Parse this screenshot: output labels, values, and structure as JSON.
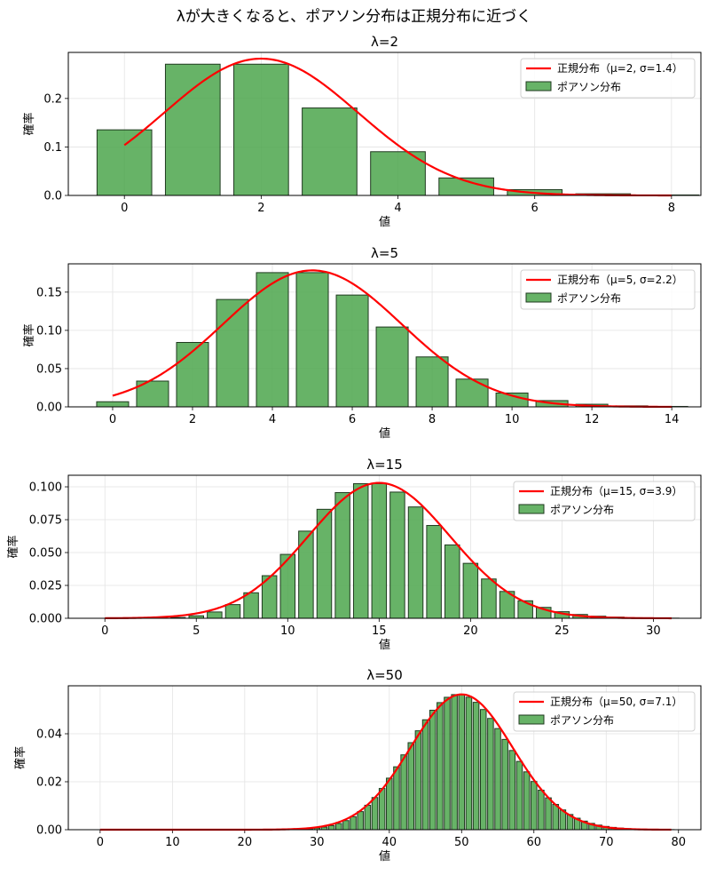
{
  "suptitle": "λが大きくなると、ポアソン分布は正規分布に近づく",
  "colors": {
    "bar": "#4CA64C",
    "bar_edge": "#1f3a1f",
    "line": "#ff0000",
    "grid": "#e3e3e3"
  },
  "chart_data": [
    {
      "type": "bar+line",
      "title": "λ=2",
      "xlabel": "値",
      "ylabel": "確率",
      "lambda": 2,
      "mu": 2,
      "sigma": 1.414,
      "legend": [
        "正規分布（μ=2, σ=1.4）",
        "ポアソン分布"
      ],
      "legend_placement": "top-right",
      "xlim": [
        -0.82,
        8.43
      ],
      "ylim": [
        0,
        0.295
      ],
      "xticks": [
        0,
        2,
        4,
        6,
        8
      ],
      "yticks": [
        0,
        0.1,
        0.2
      ],
      "ytick_labels": [
        "0.0",
        "0.1",
        "0.2"
      ],
      "x": [
        0,
        1,
        2,
        3,
        4,
        5,
        6,
        7,
        8
      ],
      "values": [
        0.1353,
        0.2707,
        0.2707,
        0.1804,
        0.0902,
        0.0361,
        0.012,
        0.0034,
        0.0009
      ],
      "line_x_range": [
        0,
        8
      ]
    },
    {
      "type": "bar+line",
      "title": "λ=5",
      "xlabel": "値",
      "ylabel": "確率",
      "lambda": 5,
      "mu": 5,
      "sigma": 2.236,
      "legend": [
        "正規分布（μ=5, σ=2.2）",
        "ポアソン分布"
      ],
      "legend_placement": "top-right",
      "xlim": [
        -1.11,
        14.73
      ],
      "ylim": [
        0,
        0.187
      ],
      "xticks": [
        0,
        2,
        4,
        6,
        8,
        10,
        12,
        14
      ],
      "yticks": [
        0,
        0.05,
        0.1,
        0.15
      ],
      "ytick_labels": [
        "0.00",
        "0.05",
        "0.10",
        "0.15"
      ],
      "x": [
        0,
        1,
        2,
        3,
        4,
        5,
        6,
        7,
        8,
        9,
        10,
        11,
        12,
        13,
        14
      ],
      "values": [
        0.0067,
        0.0337,
        0.0842,
        0.1404,
        0.1755,
        0.1755,
        0.1462,
        0.1044,
        0.0653,
        0.0363,
        0.0181,
        0.0082,
        0.0034,
        0.0013,
        0.0005
      ],
      "line_x_range": [
        0,
        14
      ]
    },
    {
      "type": "bar+line",
      "title": "λ=15",
      "xlabel": "値",
      "ylabel": "確率",
      "lambda": 15,
      "mu": 15,
      "sigma": 3.873,
      "legend": [
        "正規分布（μ=15, σ=3.9）",
        "ポアソン分布"
      ],
      "legend_placement": "top-right",
      "xlim": [
        -2.0,
        32.6
      ],
      "ylim": [
        0,
        0.1088
      ],
      "xticks": [
        0,
        5,
        10,
        15,
        20,
        25,
        30
      ],
      "yticks": [
        0,
        0.025,
        0.05,
        0.075,
        0.1
      ],
      "ytick_labels": [
        "0.000",
        "0.025",
        "0.050",
        "0.075",
        "0.100"
      ],
      "x": [
        0,
        1,
        2,
        3,
        4,
        5,
        6,
        7,
        8,
        9,
        10,
        11,
        12,
        13,
        14,
        15,
        16,
        17,
        18,
        19,
        20,
        21,
        22,
        23,
        24,
        25,
        26,
        27,
        28,
        29,
        30,
        31
      ],
      "values": [
        0.0,
        0.0,
        0.0,
        0.0002,
        0.0006,
        0.0019,
        0.0048,
        0.0104,
        0.0194,
        0.0324,
        0.0486,
        0.0663,
        0.0829,
        0.0956,
        0.1024,
        0.1024,
        0.096,
        0.0847,
        0.0706,
        0.0558,
        0.0418,
        0.0299,
        0.0204,
        0.0133,
        0.0083,
        0.005,
        0.0029,
        0.0016,
        0.0009,
        0.0004,
        0.0002,
        0.0001
      ],
      "line_x_range": [
        0,
        31
      ]
    },
    {
      "type": "bar+line",
      "title": "λ=50",
      "xlabel": "値",
      "ylabel": "確率",
      "lambda": 50,
      "mu": 50,
      "sigma": 7.071,
      "legend": [
        "正規分布（μ=50, σ=7.1）",
        "ポアソン分布"
      ],
      "legend_placement": "top-right",
      "xlim": [
        -4.4,
        83.1
      ],
      "ylim": [
        0,
        0.06
      ],
      "xticks": [
        0,
        10,
        20,
        30,
        40,
        50,
        60,
        70,
        80
      ],
      "yticks": [
        0,
        0.02,
        0.04
      ],
      "ytick_labels": [
        "0.00",
        "0.02",
        "0.04"
      ],
      "x_start": 0,
      "values": [
        0,
        0,
        0,
        0,
        0,
        0,
        0,
        0,
        0,
        0,
        0,
        0,
        0,
        0,
        0,
        0,
        0,
        0,
        0,
        0,
        0,
        0,
        0,
        1e-05,
        2e-05,
        4e-05,
        7e-05,
        0.00013,
        0.00024,
        0.00041,
        0.00068,
        0.00109,
        0.00171,
        0.00259,
        0.0038,
        0.00543,
        0.00755,
        0.0102,
        0.01342,
        0.0172,
        0.0215,
        0.02622,
        0.03121,
        0.03629,
        0.04124,
        0.04583,
        0.04981,
        0.05299,
        0.0552,
        0.05633,
        0.05633,
        0.05523,
        0.05311,
        0.0501,
        0.04639,
        0.04217,
        0.03765,
        0.03303,
        0.02847,
        0.02413,
        0.02011,
        0.01648,
        0.01329,
        0.01055,
        0.00824,
        0.00634,
        0.0048,
        0.00358,
        0.00263,
        0.00191,
        0.00136,
        0.00096,
        0.00067,
        0.00046,
        0.00031,
        0.00021,
        0.00014,
        9e-05,
        6e-05,
        4e-05
      ],
      "line_x_range": [
        0,
        79
      ]
    }
  ]
}
